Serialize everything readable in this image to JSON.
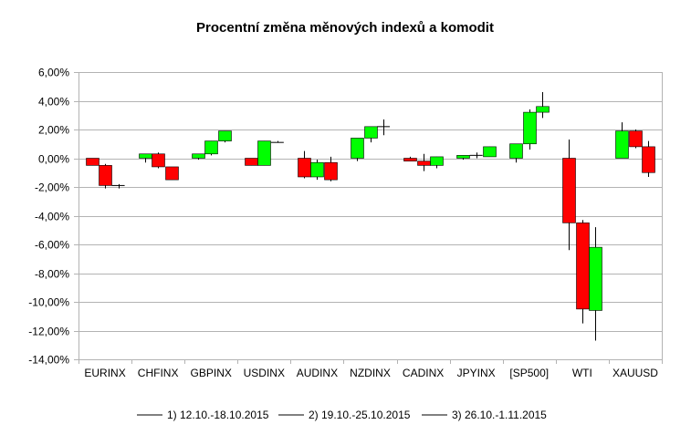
{
  "chart_data": {
    "type": "candlestick",
    "title": "Procentní změna měnových indexů a komodit",
    "ylim": [
      -14,
      6
    ],
    "y_ticks": [
      6,
      4,
      2,
      0,
      -2,
      -4,
      -6,
      -8,
      -10,
      -12,
      -14
    ],
    "y_tick_labels": [
      "6,00%",
      "4,00%",
      "2,00%",
      "0,00%",
      "-2,00%",
      "-4,00%",
      "-6,00%",
      "-8,00%",
      "-10,00%",
      "-12,00%",
      "-14,00%"
    ],
    "grid": true,
    "legend_position": "bottom",
    "colors": {
      "up": "#00ff00",
      "down": "#ff0000",
      "grid": "#b3b3b3",
      "border": "#000000"
    },
    "categories": [
      "EURINX",
      "CHFINX",
      "GBPINX",
      "USDINX",
      "AUDINX",
      "NZDINX",
      "CADINX",
      "JPYINX",
      "[SP500]",
      "WTI",
      "XAUUSD"
    ],
    "series": [
      {
        "name": "1) 12.10.-18.10.2015",
        "candles": [
          {
            "open": 0.0,
            "close": -0.5,
            "high": 0.0,
            "low": -0.5
          },
          {
            "open": 0.0,
            "close": 0.3,
            "high": 0.3,
            "low": -0.3
          },
          {
            "open": 0.0,
            "close": 0.3,
            "high": 0.3,
            "low": -0.1
          },
          {
            "open": 0.0,
            "close": -0.5,
            "high": 0.0,
            "low": -0.5
          },
          {
            "open": 0.0,
            "close": -1.3,
            "high": 0.5,
            "low": -1.4
          },
          {
            "open": 0.0,
            "close": 1.4,
            "high": 1.4,
            "low": -0.2
          },
          {
            "open": 0.0,
            "close": -0.2,
            "high": 0.1,
            "low": -0.2
          },
          {
            "open": 0.0,
            "close": 0.2,
            "high": 0.2,
            "low": -0.1
          },
          {
            "open": 0.0,
            "close": 1.0,
            "high": 1.0,
            "low": -0.3
          },
          {
            "open": 0.0,
            "close": -4.5,
            "high": 1.3,
            "low": -6.4
          },
          {
            "open": 0.0,
            "close": 1.9,
            "high": 2.5,
            "low": 0.0
          }
        ]
      },
      {
        "name": "2) 19.10.-25.10.2015",
        "candles": [
          {
            "open": -0.5,
            "close": -1.9,
            "high": -0.4,
            "low": -2.1
          },
          {
            "open": 0.3,
            "close": -0.6,
            "high": 0.4,
            "low": -0.7
          },
          {
            "open": 0.3,
            "close": 1.2,
            "high": 1.2,
            "low": 0.2
          },
          {
            "open": -0.5,
            "close": 1.2,
            "high": 1.2,
            "low": -0.5
          },
          {
            "open": -1.3,
            "close": -0.3,
            "high": -0.1,
            "low": -1.5
          },
          {
            "open": 1.4,
            "close": 2.2,
            "high": 2.2,
            "low": 1.1
          },
          {
            "open": -0.2,
            "close": -0.5,
            "high": 0.3,
            "low": -0.9
          },
          {
            "open": 0.2,
            "close": 0.2,
            "high": 0.4,
            "low": 0.0
          },
          {
            "open": 1.0,
            "close": 3.2,
            "high": 3.4,
            "low": 0.6
          },
          {
            "open": -4.5,
            "close": -10.5,
            "high": -4.3,
            "low": -11.5
          },
          {
            "open": 1.9,
            "close": 0.8,
            "high": 2.0,
            "low": 0.7
          }
        ]
      },
      {
        "name": "3) 26.10.-1.11.2015",
        "candles": [
          {
            "open": -1.9,
            "close": -1.9,
            "high": -1.8,
            "low": -2.1
          },
          {
            "open": -0.6,
            "close": -1.5,
            "high": -0.6,
            "low": -1.5
          },
          {
            "open": 1.2,
            "close": 1.9,
            "high": 1.9,
            "low": 1.1
          },
          {
            "open": 1.1,
            "close": 1.1,
            "high": 1.2,
            "low": 1.1
          },
          {
            "open": -0.3,
            "close": -1.5,
            "high": 0.1,
            "low": -1.6
          },
          {
            "open": 2.2,
            "close": 2.2,
            "high": 2.7,
            "low": 1.6
          },
          {
            "open": -0.5,
            "close": 0.1,
            "high": 0.1,
            "low": -0.7
          },
          {
            "open": 0.1,
            "close": 0.8,
            "high": 0.8,
            "low": 0.1
          },
          {
            "open": 3.2,
            "close": 3.6,
            "high": 4.6,
            "low": 2.8
          },
          {
            "open": -10.6,
            "close": -6.2,
            "high": -4.8,
            "low": -12.7
          },
          {
            "open": 0.8,
            "close": -1.0,
            "high": 1.2,
            "low": -1.3
          }
        ]
      }
    ]
  }
}
